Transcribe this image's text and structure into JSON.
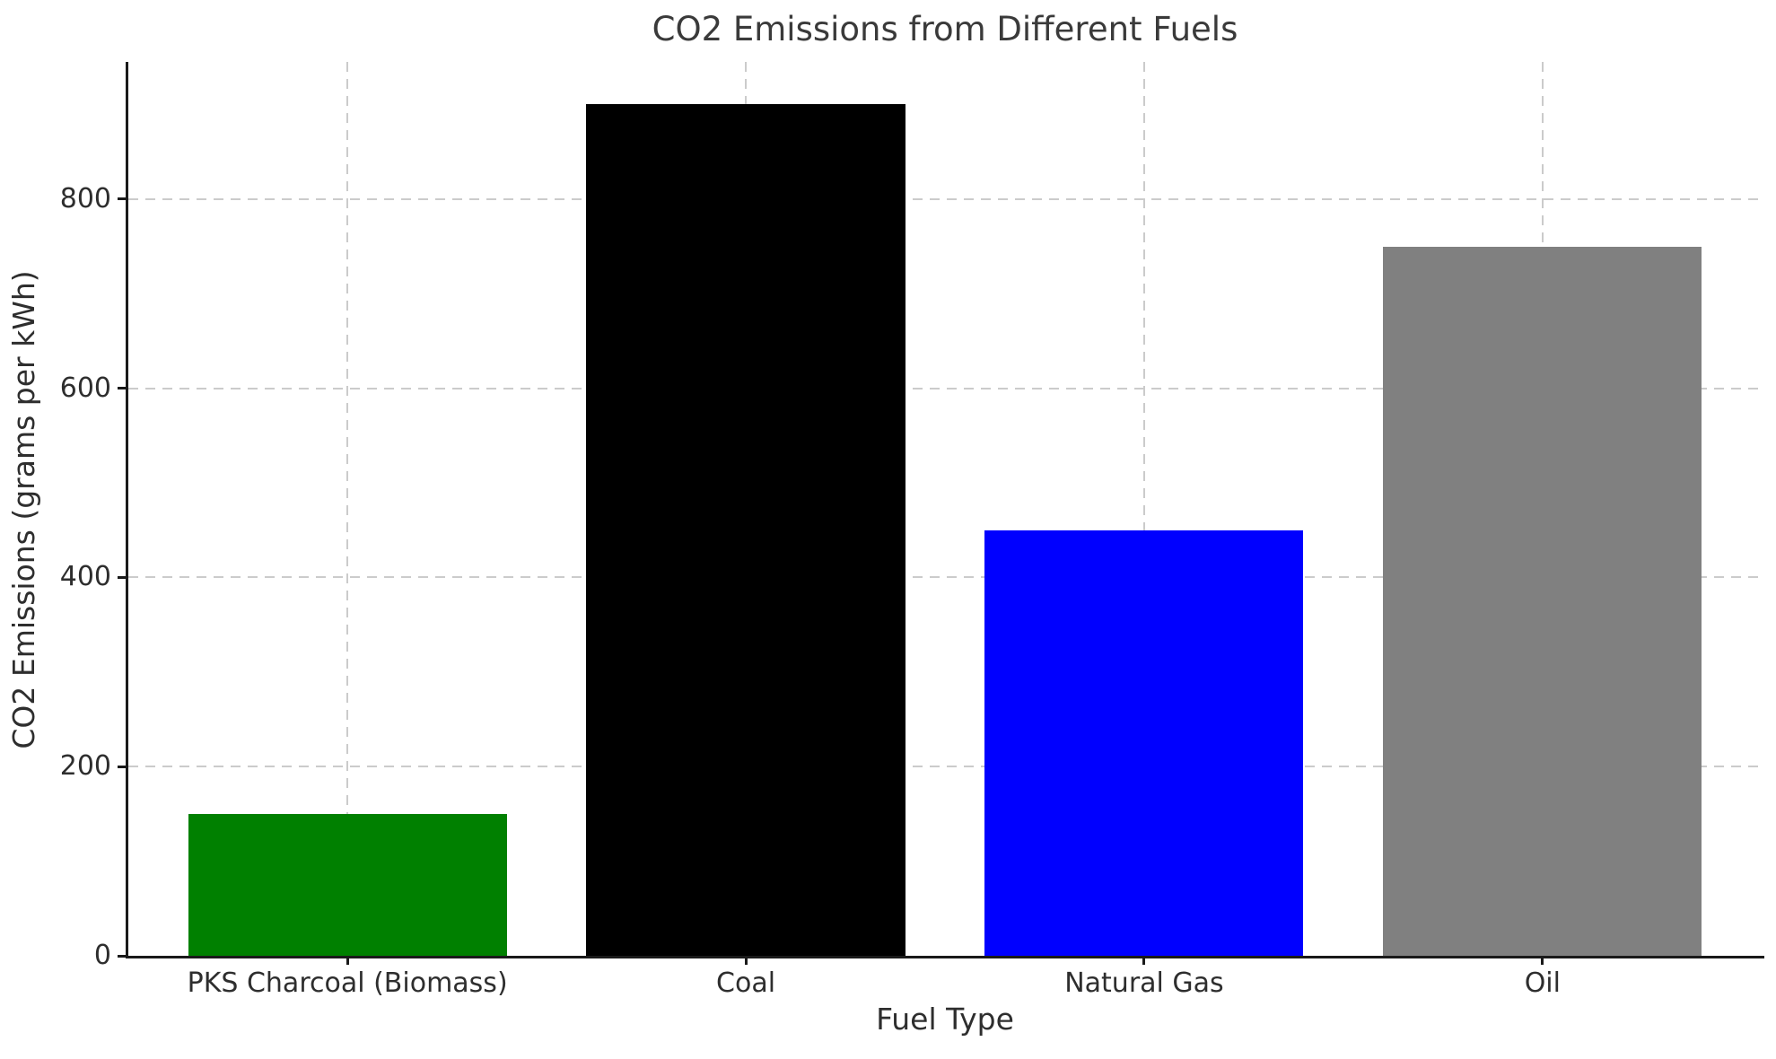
{
  "chart_data": {
    "type": "bar",
    "title": "CO2 Emissions from Different Fuels",
    "xlabel": "Fuel Type",
    "ylabel": "CO2 Emissions (grams per kWh)",
    "categories": [
      "PKS Charcoal (Biomass)",
      "Coal",
      "Natural Gas",
      "Oil"
    ],
    "values": [
      150,
      900,
      450,
      750
    ],
    "bar_colors": [
      "#008000",
      "#000000",
      "#0000ff",
      "#808080"
    ],
    "ylim": [
      0,
      945
    ],
    "yticks": [
      0,
      200,
      400,
      600,
      800
    ],
    "grid": "dashed horizontal and vertical gridlines, drawn behind bars",
    "gridline_color": "#cbcbcb",
    "spine_color": "#1a1a1a",
    "text_color": "#2e2e2e",
    "legend": "none",
    "background_color": "#ffffff"
  }
}
